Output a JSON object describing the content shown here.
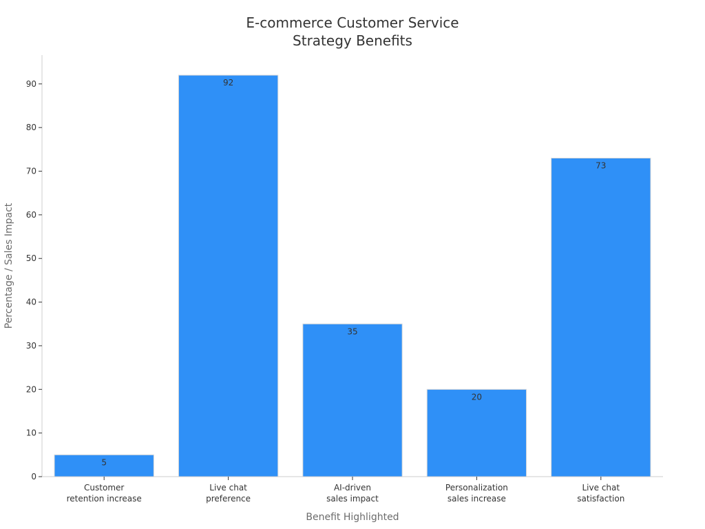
{
  "chart_data": {
    "type": "bar",
    "title_lines": [
      "E-commerce Customer Service",
      "Strategy Benefits"
    ],
    "xlabel": "Benefit Highlighted",
    "ylabel": "Percentage / Sales Impact",
    "categories": [
      [
        "Customer",
        "retention increase"
      ],
      [
        "Live chat",
        "preference"
      ],
      [
        "AI-driven",
        "sales impact"
      ],
      [
        "Personalization",
        "sales increase"
      ],
      [
        "Live chat",
        "satisfaction"
      ]
    ],
    "values": [
      5,
      92,
      35,
      20,
      73
    ],
    "data_labels": [
      "5",
      "92",
      "35",
      "20",
      "73"
    ],
    "ylim": [
      0,
      96.6
    ],
    "yticks": [
      0,
      10,
      20,
      30,
      40,
      50,
      60,
      70,
      80,
      90
    ],
    "grid": false,
    "legend": "none",
    "bar_color": "#2f90f7"
  }
}
